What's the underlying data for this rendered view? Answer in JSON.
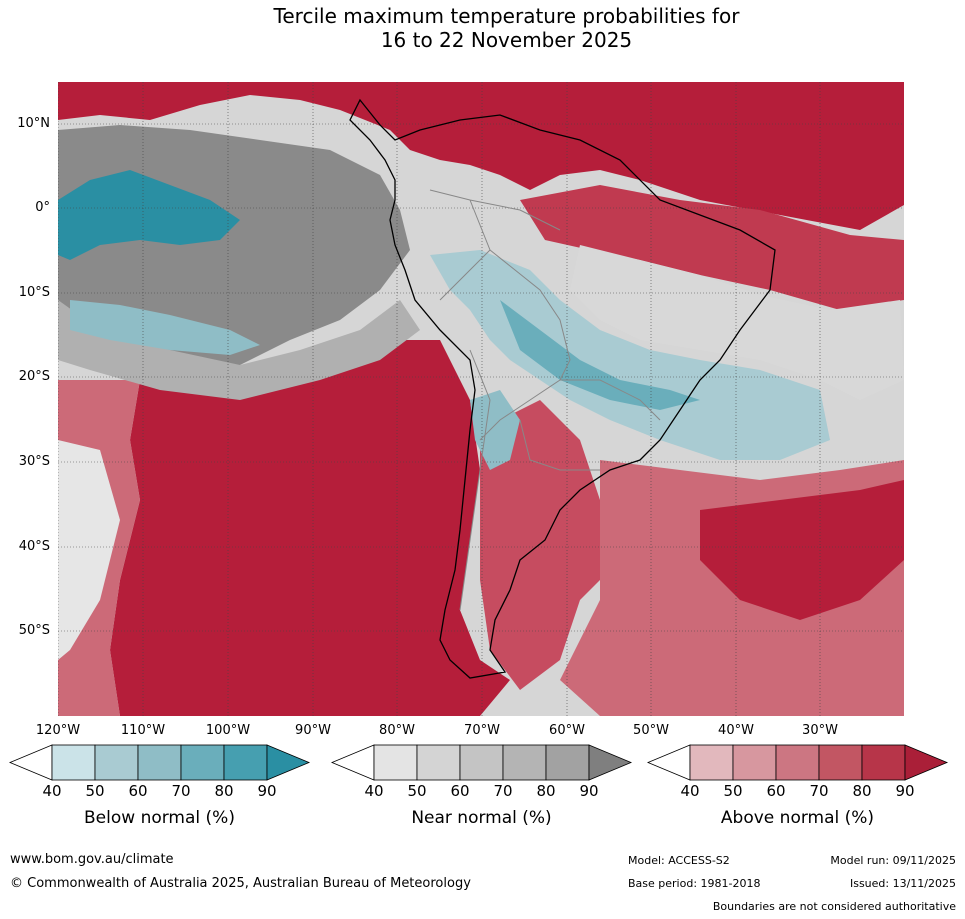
{
  "title_line1": "Tercile maximum temperature probabilities for",
  "title_line2": "16 to 22 November 2025",
  "lat_labels": [
    "10°N",
    "0°",
    "10°S",
    "20°S",
    "30°S",
    "40°S",
    "50°S"
  ],
  "lon_labels": [
    "120°W",
    "110°W",
    "100°W",
    "90°W",
    "80°W",
    "70°W",
    "60°W",
    "50°W",
    "40°W",
    "30°W"
  ],
  "colorbars": [
    {
      "title": "Below normal (%)",
      "ticks": [
        "40",
        "50",
        "60",
        "70",
        "80",
        "90"
      ],
      "colors": [
        "#ffffff",
        "#cbe3e8",
        "#a9cbd2",
        "#8fbdc6",
        "#6aaebb",
        "#469fb0",
        "#2a8fa3"
      ]
    },
    {
      "title": "Near normal (%)",
      "ticks": [
        "40",
        "50",
        "60",
        "70",
        "80",
        "90"
      ],
      "colors": [
        "#ffffff",
        "#e4e4e4",
        "#d4d4d4",
        "#c4c4c4",
        "#b4b4b4",
        "#a2a2a2",
        "#7f7f7f"
      ]
    },
    {
      "title": "Above normal (%)",
      "ticks": [
        "40",
        "50",
        "60",
        "70",
        "80",
        "90"
      ],
      "colors": [
        "#ffffff",
        "#e2b8bd",
        "#d7979f",
        "#cc7682",
        "#c25663",
        "#b73549",
        "#aa1f38"
      ]
    }
  ],
  "footer": {
    "website": "www.bom.gov.au/climate",
    "copyright": "© Commonwealth of Australia 2025, Australian Bureau of Meteorology",
    "model": "Model: ACCESS-S2",
    "base_period": "Base period: 1981-2018",
    "model_run": "Model run: 09/11/2025",
    "issued": "Issued: 13/11/2025",
    "disclaimer": "Boundaries are not considered authoritative"
  }
}
